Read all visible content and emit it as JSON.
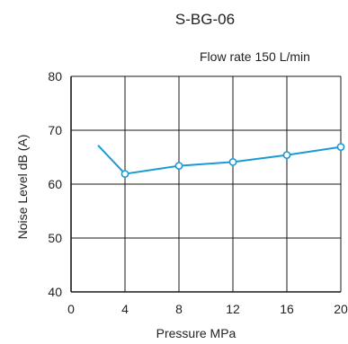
{
  "chart_data": {
    "type": "line",
    "title": "S-BG-06",
    "annotation": "Flow rate 150 L/min",
    "xlabel": "Pressure   MPa",
    "ylabel": "Noise Level   dB (A)",
    "xlim": [
      0,
      20
    ],
    "ylim": [
      40,
      80
    ],
    "xticks": [
      0,
      4,
      8,
      12,
      16,
      20
    ],
    "yticks": [
      40,
      50,
      60,
      70,
      80
    ],
    "grid": true,
    "legend": "none",
    "series": [
      {
        "color": "#1a9ad6",
        "points": [
          {
            "x": 2,
            "y": 67.2,
            "marker": false
          },
          {
            "x": 4,
            "y": 61.9,
            "marker": true
          },
          {
            "x": 8,
            "y": 63.4,
            "marker": true
          },
          {
            "x": 12,
            "y": 64.1,
            "marker": true
          },
          {
            "x": 16,
            "y": 65.4,
            "marker": true
          },
          {
            "x": 20,
            "y": 66.9,
            "marker": true
          }
        ]
      }
    ]
  }
}
